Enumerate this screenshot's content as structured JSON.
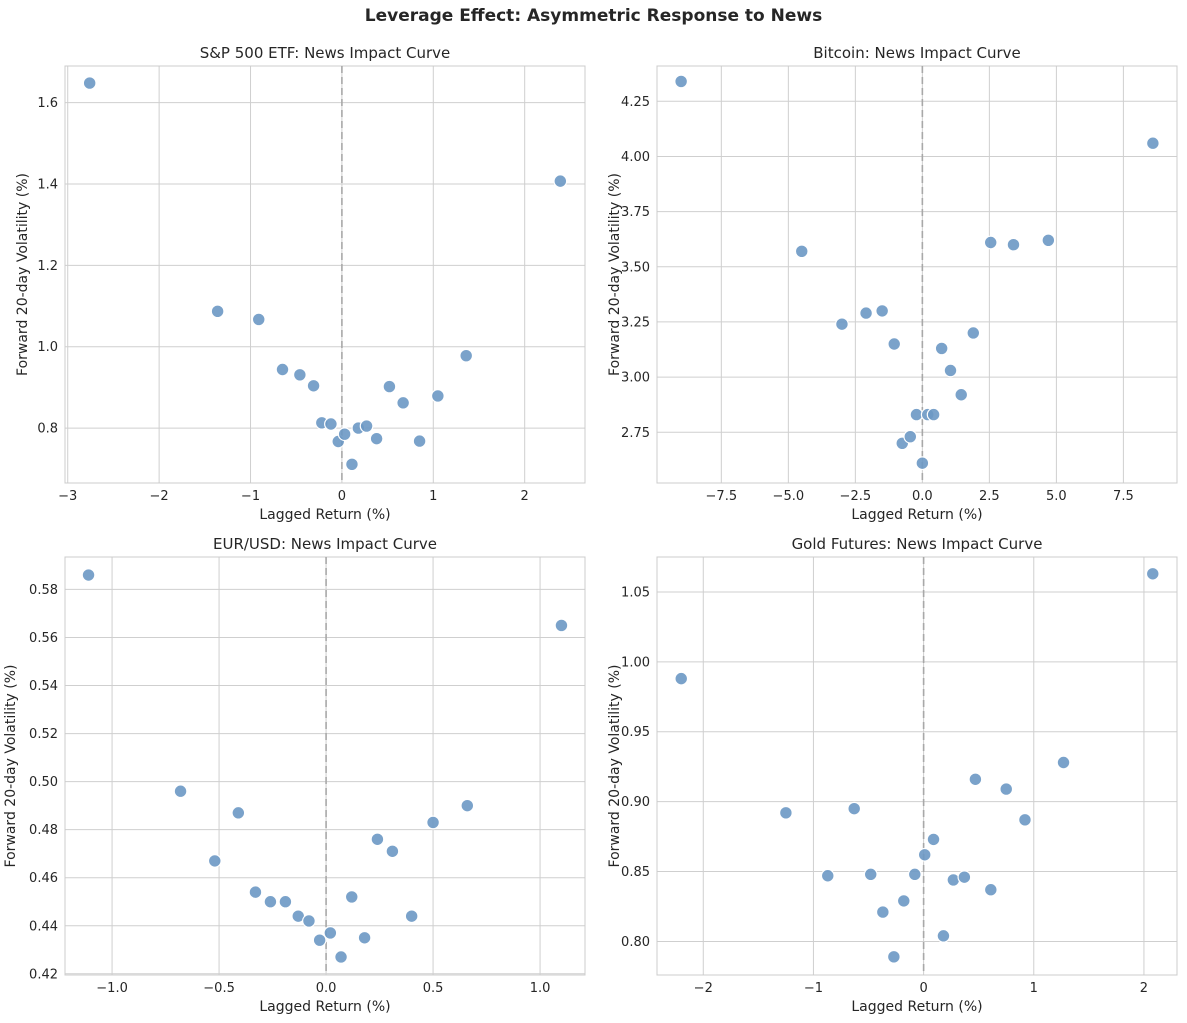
{
  "figure_title": "Leverage Effect: Asymmetric Response to News",
  "colors": {
    "point": "#6b98c4",
    "grid": "#cfcfcf",
    "zero_line": "#a8a8a8"
  },
  "chart_data": [
    {
      "type": "scatter",
      "title": "S&P 500 ETF: News Impact Curve",
      "xlabel": "Lagged Return (%)",
      "ylabel": "Forward 20-day Volatility (%)",
      "xlim": [
        -3.03,
        2.66
      ],
      "ylim": [
        0.665,
        1.69
      ],
      "xticks": [
        -3,
        -2,
        -1,
        0,
        1,
        2
      ],
      "xtick_labels": [
        "−3",
        "−2",
        "−1",
        "0",
        "1",
        "2"
      ],
      "yticks": [
        0.8,
        1.0,
        1.2,
        1.4,
        1.6
      ],
      "ytick_labels": [
        "0.8",
        "1.0",
        "1.2",
        "1.4",
        "1.6"
      ],
      "reference_line_x": 0,
      "x": [
        -2.76,
        -1.36,
        -0.91,
        -0.65,
        -0.46,
        -0.31,
        -0.22,
        -0.12,
        -0.04,
        0.03,
        0.11,
        0.18,
        0.27,
        0.38,
        0.52,
        0.67,
        0.85,
        1.05,
        1.36,
        2.39
      ],
      "y": [
        1.648,
        1.087,
        1.067,
        0.944,
        0.931,
        0.904,
        0.813,
        0.81,
        0.767,
        0.785,
        0.711,
        0.8,
        0.805,
        0.774,
        0.902,
        0.862,
        0.768,
        0.879,
        0.978,
        1.407
      ]
    },
    {
      "type": "scatter",
      "title": "Bitcoin: News Impact Curve",
      "xlabel": "Lagged Return (%)",
      "ylabel": "Forward 20-day Volatility (%)",
      "xlim": [
        -9.9,
        9.5
      ],
      "ylim": [
        2.52,
        4.41
      ],
      "xticks": [
        -7.5,
        -5,
        -2.5,
        0,
        2.5,
        5,
        7.5
      ],
      "xtick_labels": [
        "−7.5",
        "−5.0",
        "−2.5",
        "0.0",
        "2.5",
        "5.0",
        "7.5"
      ],
      "yticks": [
        2.75,
        3.0,
        3.25,
        3.5,
        3.75,
        4.0,
        4.25
      ],
      "ytick_labels": [
        "2.75",
        "3.00",
        "3.25",
        "3.50",
        "3.75",
        "4.00",
        "4.25"
      ],
      "reference_line_x": 0,
      "x": [
        -9.0,
        -4.5,
        -3.0,
        -2.1,
        -1.5,
        -1.05,
        -0.75,
        -0.45,
        -0.22,
        0.0,
        0.2,
        0.42,
        0.72,
        1.05,
        1.45,
        1.9,
        2.55,
        3.4,
        4.7,
        8.6
      ],
      "y": [
        4.34,
        3.57,
        3.24,
        3.29,
        3.3,
        3.15,
        2.7,
        2.73,
        2.83,
        2.61,
        2.83,
        2.83,
        3.13,
        3.03,
        2.92,
        3.2,
        3.61,
        3.6,
        3.62,
        4.06
      ]
    },
    {
      "type": "scatter",
      "title": "EUR/USD: News Impact Curve",
      "xlabel": "Lagged Return (%)",
      "ylabel": "Forward 20-day Volatility (%)",
      "xlim": [
        -1.22,
        1.21
      ],
      "ylim": [
        0.4195,
        0.5935
      ],
      "xticks": [
        -1.0,
        -0.5,
        0.0,
        0.5,
        1.0
      ],
      "xtick_labels": [
        "−1.0",
        "−0.5",
        "0.0",
        "0.5",
        "1.0"
      ],
      "yticks": [
        0.42,
        0.44,
        0.46,
        0.48,
        0.5,
        0.52,
        0.54,
        0.56,
        0.58
      ],
      "ytick_labels": [
        "0.42",
        "0.44",
        "0.46",
        "0.48",
        "0.50",
        "0.52",
        "0.54",
        "0.56",
        "0.58"
      ],
      "reference_line_x": 0,
      "x": [
        -1.11,
        -0.68,
        -0.52,
        -0.41,
        -0.33,
        -0.26,
        -0.19,
        -0.13,
        -0.08,
        -0.03,
        0.02,
        0.07,
        0.12,
        0.18,
        0.24,
        0.31,
        0.4,
        0.5,
        0.66,
        1.1
      ],
      "y": [
        0.586,
        0.496,
        0.467,
        0.487,
        0.454,
        0.45,
        0.45,
        0.444,
        0.442,
        0.434,
        0.437,
        0.427,
        0.452,
        0.435,
        0.476,
        0.471,
        0.444,
        0.483,
        0.49,
        0.565
      ]
    },
    {
      "type": "scatter",
      "title": "Gold Futures: News Impact Curve",
      "xlabel": "Lagged Return (%)",
      "ylabel": "Forward 20-day Volatility (%)",
      "xlim": [
        -2.42,
        2.3
      ],
      "ylim": [
        0.776,
        1.075
      ],
      "xticks": [
        -2,
        -1,
        0,
        1,
        2
      ],
      "xtick_labels": [
        "−2",
        "−1",
        "0",
        "1",
        "2"
      ],
      "yticks": [
        0.8,
        0.85,
        0.9,
        0.95,
        1.0,
        1.05
      ],
      "ytick_labels": [
        "0.80",
        "0.85",
        "0.90",
        "0.95",
        "1.00",
        "1.05"
      ],
      "reference_line_x": 0,
      "x": [
        -2.2,
        -1.25,
        -0.87,
        -0.63,
        -0.48,
        -0.37,
        -0.27,
        -0.18,
        -0.08,
        0.01,
        0.09,
        0.18,
        0.27,
        0.37,
        0.47,
        0.61,
        0.75,
        0.92,
        1.27,
        2.08
      ],
      "y": [
        0.988,
        0.892,
        0.847,
        0.895,
        0.848,
        0.821,
        0.789,
        0.829,
        0.848,
        0.862,
        0.873,
        0.804,
        0.844,
        0.846,
        0.916,
        0.837,
        0.909,
        0.887,
        0.928,
        1.063
      ]
    }
  ]
}
